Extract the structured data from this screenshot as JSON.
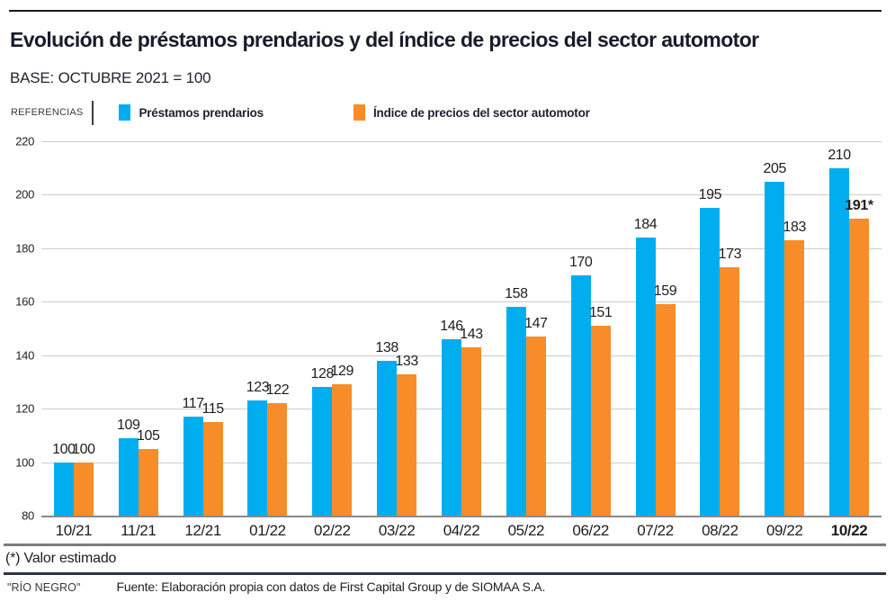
{
  "header": {
    "title": "Evolución de préstamos prendarios y del índice de precios del sector automotor",
    "subtitle": "BASE: OCTUBRE 2021 = 100"
  },
  "legend": {
    "references_label": "REFERENCIAS",
    "items": [
      {
        "label": "Préstamos prendarios",
        "color": "#00AEEF"
      },
      {
        "label": "Índice de precios del sector automotor",
        "color": "#F78C28"
      }
    ]
  },
  "chart_data": {
    "type": "bar",
    "title": "Evolución de préstamos prendarios y del índice de precios del sector automotor",
    "subtitle": "BASE: OCTUBRE 2021 = 100",
    "xlabel": "",
    "ylabel": "",
    "ylim": [
      80,
      220
    ],
    "yticks": [
      80,
      100,
      120,
      140,
      160,
      180,
      200,
      220
    ],
    "grid": true,
    "legend_position": "top",
    "categories": [
      "10/21",
      "11/21",
      "12/21",
      "01/22",
      "02/22",
      "03/22",
      "04/22",
      "05/22",
      "06/22",
      "07/22",
      "08/22",
      "09/22",
      "10/22"
    ],
    "emphasized_category": "10/22",
    "series": [
      {
        "name": "Préstamos prendarios",
        "color": "#00AEEF",
        "values": [
          100,
          109,
          117,
          123,
          128,
          138,
          146,
          158,
          170,
          184,
          195,
          205,
          210
        ],
        "labels": [
          "100",
          "109",
          "117",
          "123",
          "128",
          "138",
          "146",
          "158",
          "170",
          "184",
          "195",
          "205",
          "210"
        ]
      },
      {
        "name": "Índice de precios del sector automotor",
        "color": "#F78C28",
        "values": [
          100,
          105,
          115,
          122,
          129,
          133,
          143,
          147,
          151,
          159,
          173,
          183,
          191
        ],
        "labels": [
          "100",
          "105",
          "115",
          "122",
          "129",
          "133",
          "143",
          "147",
          "151",
          "159",
          "173",
          "183",
          "191*"
        ]
      }
    ]
  },
  "footer": {
    "footnote": "(*) Valor estimado",
    "credit": "\"RÍO NEGRO\"",
    "source": "Fuente: Elaboración propia con datos de First Capital Group y de SIOMAA S.A."
  }
}
